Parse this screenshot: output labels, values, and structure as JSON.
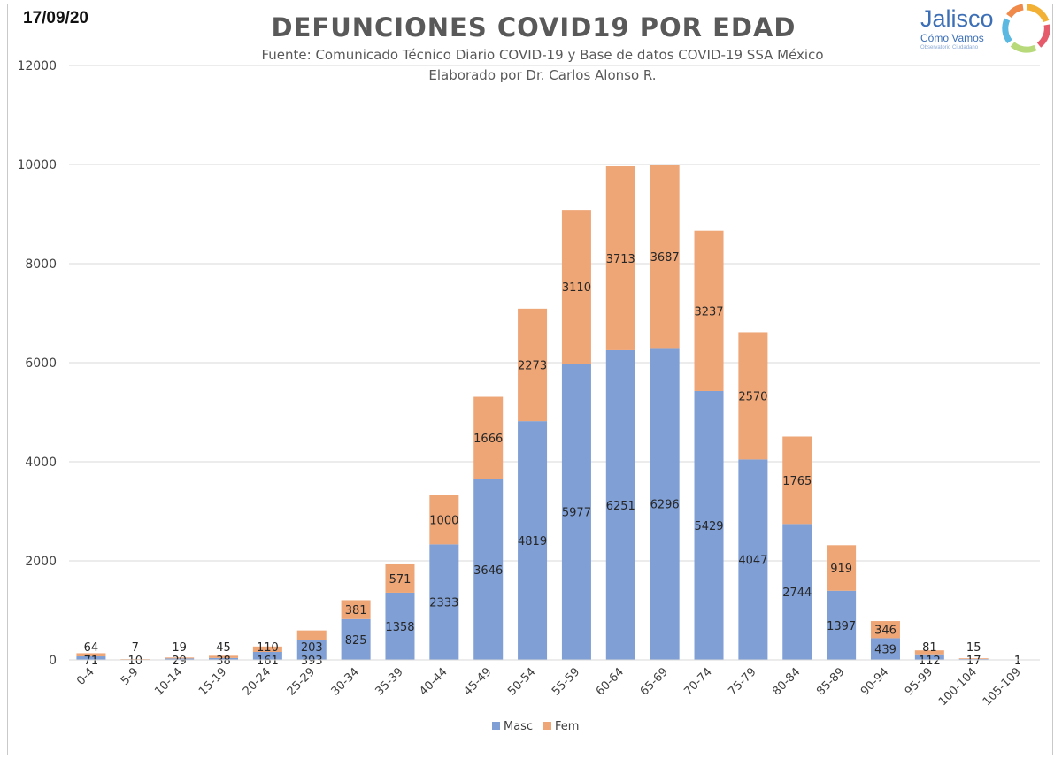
{
  "date": "17/09/20",
  "logo": {
    "name": "Jalisco",
    "tagline": "Cómo Vamos",
    "small": "Observatorio Ciudadano"
  },
  "colors": {
    "masc": "#7f9fd5",
    "fem": "#eea677",
    "grid": "#d9d9d9",
    "text": "#404040"
  },
  "chart_data": {
    "type": "bar",
    "stacked": true,
    "title": "DEFUNCIONES COVID19 POR EDAD",
    "subtitle_1": "Fuente: Comunicado Técnico Diario COVID-19 y Base de datos COVID-19 SSA México",
    "subtitle_2": "Elaborado por Dr. Carlos Alonso R.",
    "categories": [
      "0-4",
      "5-9",
      "10-14",
      "15-19",
      "20-24",
      "25-29",
      "30-34",
      "35-39",
      "40-44",
      "45-49",
      "50-54",
      "55-59",
      "60-64",
      "65-69",
      "70-74",
      "75-79",
      "80-84",
      "85-89",
      "90-94",
      "95-99",
      "100-104",
      "105-109"
    ],
    "series": [
      {
        "name": "Masc",
        "values": [
          71,
          10,
          29,
          38,
          161,
          393,
          825,
          1358,
          2333,
          3646,
          4819,
          5977,
          6251,
          6296,
          5429,
          4047,
          2744,
          1397,
          439,
          112,
          17,
          1
        ]
      },
      {
        "name": "Fem",
        "values": [
          64,
          7,
          19,
          45,
          110,
          203,
          381,
          571,
          1000,
          1666,
          2273,
          3110,
          3713,
          3687,
          3237,
          2570,
          1765,
          919,
          346,
          81,
          15,
          null
        ]
      }
    ],
    "ylim": [
      0,
      12000
    ],
    "yticks": [
      0,
      2000,
      4000,
      6000,
      8000,
      10000,
      12000
    ],
    "grid": true,
    "legend": "bottom"
  }
}
